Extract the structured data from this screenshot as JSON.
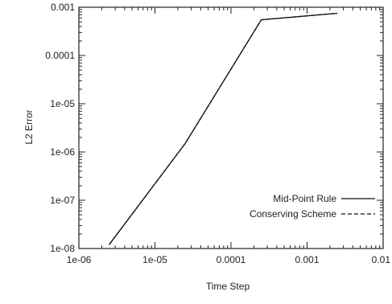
{
  "chart_data": {
    "type": "line",
    "xscale": "log",
    "yscale": "log",
    "xlabel": "Time Step",
    "ylabel": "L2 Error",
    "xlim": [
      1e-06,
      0.01
    ],
    "ylim": [
      1e-08,
      0.001
    ],
    "x_ticks": [
      1e-06,
      1e-05,
      0.0001,
      0.001,
      0.01
    ],
    "x_tick_labels": [
      "1e-06",
      "1e-05",
      "0.0001",
      "0.001",
      "0.01"
    ],
    "y_ticks": [
      1e-08,
      1e-07,
      1e-06,
      1e-05,
      0.0001,
      0.001
    ],
    "y_tick_labels": [
      "1e-08",
      "1e-07",
      "1e-06",
      "1e-05",
      "0.0001",
      "0.001"
    ],
    "grid": false,
    "legend_position": "bottom-right",
    "series": [
      {
        "name": "Mid-Point Rule",
        "style": "solid",
        "color": "#111111",
        "x": [
          2.5e-06,
          2.5e-05,
          0.00025,
          0.0025
        ],
        "y": [
          1.2e-08,
          1.5e-06,
          0.00055,
          0.00075
        ]
      },
      {
        "name": "Conserving Scheme",
        "style": "dashed",
        "color": "#111111",
        "x": [
          2.5e-06,
          2.5e-05,
          0.00025,
          0.0025
        ],
        "y": [
          1.2e-08,
          1.5e-06,
          0.00055,
          0.00075
        ]
      }
    ]
  }
}
